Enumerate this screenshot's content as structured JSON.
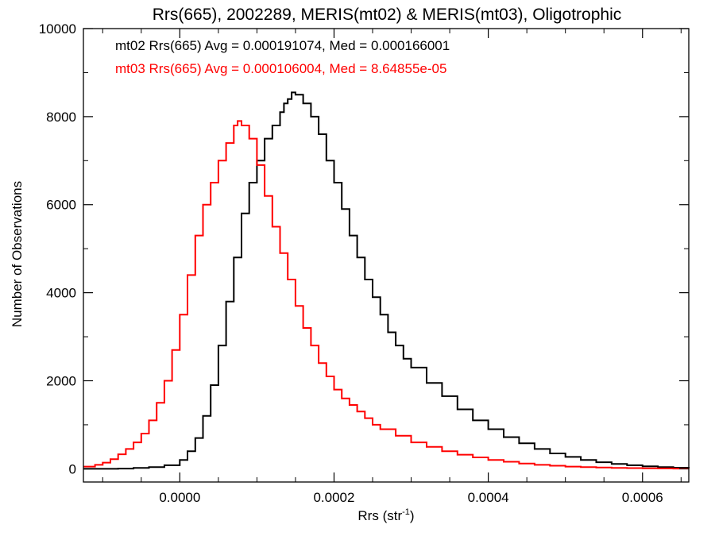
{
  "chart_data": {
    "type": "line",
    "title": "Rrs(665), 2002289, MERIS(mt02) & MERIS(mt03), Oligotrophic",
    "xlabel": "Rrs (str",
    "xlabel_sup": "-1",
    "xlabel_close": ")",
    "ylabel": "Number of Observations",
    "xlim": [
      -0.000125,
      0.00066
    ],
    "ylim": [
      -300,
      10000
    ],
    "xticks": [
      0.0,
      0.0002,
      0.0004,
      0.0006
    ],
    "xtick_labels": [
      "0.0000",
      "0.0002",
      "0.0004",
      "0.0006"
    ],
    "yticks": [
      0,
      2000,
      4000,
      6000,
      8000,
      10000
    ],
    "ytick_labels": [
      "0",
      "2000",
      "4000",
      "6000",
      "8000",
      "10000"
    ],
    "grid": false,
    "annotations": [
      {
        "text": "mt02 Rrs(665) Avg = 0.000191074, Med = 0.000166001",
        "color": "#000000"
      },
      {
        "text": "mt03 Rrs(665) Avg = 0.000106004, Med = 8.64855e-05",
        "color": "#ff0000"
      }
    ],
    "series": [
      {
        "name": "mt02",
        "color": "#000000",
        "step": true,
        "x": [
          -0.000125,
          -0.0001,
          -8e-05,
          -6e-05,
          -4e-05,
          -2e-05,
          0.0,
          1e-05,
          2e-05,
          3e-05,
          4e-05,
          5e-05,
          6e-05,
          7e-05,
          8e-05,
          9e-05,
          0.0001,
          0.00011,
          0.00012,
          0.00013,
          0.000135,
          0.00014,
          0.000145,
          0.00015,
          0.00016,
          0.00017,
          0.00018,
          0.00019,
          0.0002,
          0.00021,
          0.00022,
          0.00023,
          0.00024,
          0.00025,
          0.00026,
          0.00027,
          0.00028,
          0.00029,
          0.0003,
          0.00032,
          0.00034,
          0.00036,
          0.00038,
          0.0004,
          0.00042,
          0.00044,
          0.00046,
          0.00048,
          0.0005,
          0.00052,
          0.00054,
          0.00056,
          0.00058,
          0.0006,
          0.00062,
          0.00064,
          0.00066
        ],
        "y": [
          0,
          0,
          5,
          20,
          40,
          80,
          200,
          400,
          700,
          1200,
          1900,
          2800,
          3800,
          4800,
          5800,
          6500,
          7000,
          7500,
          7800,
          8100,
          8300,
          8400,
          8550,
          8500,
          8300,
          8000,
          7600,
          7000,
          6500,
          5900,
          5300,
          4800,
          4300,
          3900,
          3500,
          3100,
          2800,
          2500,
          2300,
          1950,
          1650,
          1350,
          1100,
          900,
          720,
          580,
          450,
          350,
          270,
          200,
          150,
          110,
          80,
          55,
          40,
          25,
          15
        ]
      },
      {
        "name": "mt03",
        "color": "#ff0000",
        "step": true,
        "x": [
          -0.000125,
          -0.00011,
          -0.0001,
          -9e-05,
          -8e-05,
          -7e-05,
          -6e-05,
          -5e-05,
          -4e-05,
          -3e-05,
          -2e-05,
          -1e-05,
          0.0,
          1e-05,
          2e-05,
          3e-05,
          4e-05,
          5e-05,
          6e-05,
          7e-05,
          7.5e-05,
          8e-05,
          9e-05,
          0.0001,
          0.00011,
          0.00012,
          0.00013,
          0.00014,
          0.00015,
          0.00016,
          0.00017,
          0.00018,
          0.00019,
          0.0002,
          0.00021,
          0.00022,
          0.00023,
          0.00024,
          0.00025,
          0.00026,
          0.00028,
          0.0003,
          0.00032,
          0.00034,
          0.00036,
          0.00038,
          0.0004,
          0.00042,
          0.00044,
          0.00046,
          0.00048,
          0.0005,
          0.00052,
          0.00054,
          0.00056,
          0.00058,
          0.0006,
          0.00062,
          0.00064,
          0.00066
        ],
        "y": [
          50,
          90,
          140,
          220,
          330,
          450,
          600,
          800,
          1100,
          1500,
          2000,
          2700,
          3500,
          4400,
          5300,
          6000,
          6500,
          7000,
          7400,
          7800,
          7900,
          7800,
          7500,
          6900,
          6200,
          5500,
          4900,
          4300,
          3700,
          3200,
          2800,
          2400,
          2100,
          1800,
          1600,
          1450,
          1300,
          1150,
          1000,
          900,
          750,
          600,
          500,
          400,
          320,
          260,
          200,
          160,
          120,
          90,
          70,
          50,
          40,
          30,
          20,
          15,
          10,
          8,
          5,
          3
        ]
      }
    ]
  }
}
